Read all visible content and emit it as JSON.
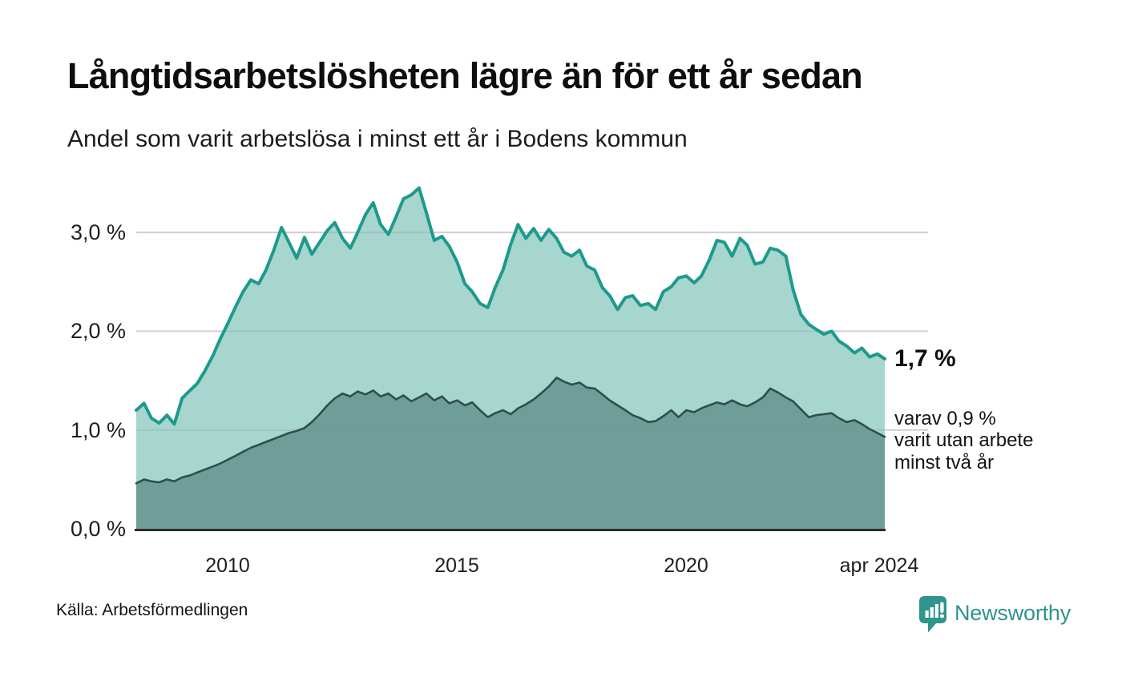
{
  "header": {
    "title": "Långtidsarbetslösheten lägre än för ett år sedan",
    "subtitle": "Andel som varit arbetslösa i minst ett år i Bodens kommun"
  },
  "annotations": {
    "value_label": "1,7 %",
    "detail_lines": [
      "varav 0,9 %",
      "varit utan arbete",
      "minst två år"
    ]
  },
  "footer": {
    "source": "Källa: Arbetsförmedlingen",
    "logo_text": "Newsworthy"
  },
  "colors": {
    "accent_line": "#1e9a8d",
    "area_light": "#a6d6ce",
    "area_dark": "#6f9e98",
    "dark_line": "#2e4f4b",
    "grid": "#e3e3e3",
    "grid_overlay": "#8a8a8a",
    "axis": "#2b2b2b",
    "logo": "#2f948b"
  },
  "chart_data": {
    "type": "area",
    "title": "Långtidsarbetslösheten lägre än för ett år sedan",
    "subtitle": "Andel som varit arbetslösa i minst ett år i Bodens kommun",
    "xlabel": "",
    "ylabel": "",
    "xlim": [
      2008.0,
      2024.33
    ],
    "ylim": [
      0,
      3.65
    ],
    "grid": "horizontal",
    "legend": "none",
    "y_ticks": [
      {
        "label": "0,0 %",
        "value": 0.0
      },
      {
        "label": "1,0 %",
        "value": 1.0
      },
      {
        "label": "2,0 %",
        "value": 2.0
      },
      {
        "label": "3,0 %",
        "value": 3.0
      }
    ],
    "x_ticks": [
      {
        "label": "2010",
        "year": 2010.0
      },
      {
        "label": "2015",
        "year": 2015.0
      },
      {
        "label": "2020",
        "year": 2020.0
      },
      {
        "label": "apr 2024",
        "year": 2024.2
      }
    ],
    "x": [
      2008.0,
      2008.17,
      2008.33,
      2008.5,
      2008.67,
      2008.83,
      2009.0,
      2009.17,
      2009.33,
      2009.5,
      2009.67,
      2009.83,
      2010.0,
      2010.17,
      2010.33,
      2010.5,
      2010.67,
      2010.83,
      2011.0,
      2011.17,
      2011.33,
      2011.5,
      2011.67,
      2011.83,
      2012.0,
      2012.17,
      2012.33,
      2012.5,
      2012.67,
      2012.83,
      2013.0,
      2013.17,
      2013.33,
      2013.5,
      2013.67,
      2013.83,
      2014.0,
      2014.17,
      2014.33,
      2014.5,
      2014.67,
      2014.83,
      2015.0,
      2015.17,
      2015.33,
      2015.5,
      2015.67,
      2015.83,
      2016.0,
      2016.17,
      2016.33,
      2016.5,
      2016.67,
      2016.83,
      2017.0,
      2017.17,
      2017.33,
      2017.5,
      2017.67,
      2017.83,
      2018.0,
      2018.17,
      2018.33,
      2018.5,
      2018.67,
      2018.83,
      2019.0,
      2019.17,
      2019.33,
      2019.5,
      2019.67,
      2019.83,
      2020.0,
      2020.17,
      2020.33,
      2020.5,
      2020.67,
      2020.83,
      2021.0,
      2021.17,
      2021.33,
      2021.5,
      2021.67,
      2021.83,
      2022.0,
      2022.17,
      2022.33,
      2022.5,
      2022.67,
      2022.83,
      2023.0,
      2023.17,
      2023.33,
      2023.5,
      2023.67,
      2023.83,
      2024.0,
      2024.17,
      2024.33
    ],
    "series": [
      {
        "name": "Arbetslösa minst ett år",
        "latest_value": 1.7,
        "values": [
          1.2,
          1.27,
          1.12,
          1.07,
          1.15,
          1.06,
          1.32,
          1.4,
          1.47,
          1.6,
          1.75,
          1.92,
          2.08,
          2.25,
          2.4,
          2.52,
          2.48,
          2.62,
          2.82,
          3.05,
          2.9,
          2.74,
          2.95,
          2.78,
          2.9,
          3.02,
          3.1,
          2.94,
          2.84,
          3.0,
          3.18,
          3.3,
          3.08,
          2.98,
          3.16,
          3.34,
          3.38,
          3.45,
          3.2,
          2.92,
          2.96,
          2.86,
          2.7,
          2.48,
          2.4,
          2.28,
          2.24,
          2.44,
          2.62,
          2.88,
          3.08,
          2.94,
          3.04,
          2.92,
          3.03,
          2.94,
          2.8,
          2.76,
          2.82,
          2.66,
          2.62,
          2.44,
          2.36,
          2.22,
          2.34,
          2.36,
          2.26,
          2.28,
          2.22,
          2.4,
          2.45,
          2.54,
          2.56,
          2.49,
          2.56,
          2.72,
          2.92,
          2.9,
          2.76,
          2.94,
          2.87,
          2.68,
          2.7,
          2.84,
          2.82,
          2.76,
          2.42,
          2.17,
          2.07,
          2.02,
          1.97,
          2.0,
          1.9,
          1.85,
          1.78,
          1.83,
          1.74,
          1.77,
          1.72
        ]
      },
      {
        "name": "varav utan arbete minst två år",
        "latest_value": 0.9,
        "values": [
          0.46,
          0.5,
          0.48,
          0.47,
          0.5,
          0.48,
          0.52,
          0.54,
          0.57,
          0.6,
          0.63,
          0.66,
          0.7,
          0.74,
          0.78,
          0.82,
          0.85,
          0.88,
          0.91,
          0.94,
          0.97,
          0.99,
          1.02,
          1.08,
          1.16,
          1.25,
          1.32,
          1.37,
          1.34,
          1.39,
          1.36,
          1.4,
          1.34,
          1.37,
          1.31,
          1.35,
          1.29,
          1.33,
          1.37,
          1.3,
          1.34,
          1.27,
          1.3,
          1.25,
          1.28,
          1.2,
          1.13,
          1.17,
          1.2,
          1.16,
          1.22,
          1.26,
          1.31,
          1.37,
          1.44,
          1.53,
          1.49,
          1.46,
          1.48,
          1.43,
          1.42,
          1.36,
          1.3,
          1.25,
          1.2,
          1.15,
          1.12,
          1.08,
          1.09,
          1.14,
          1.2,
          1.13,
          1.2,
          1.18,
          1.22,
          1.25,
          1.28,
          1.26,
          1.3,
          1.26,
          1.24,
          1.28,
          1.33,
          1.42,
          1.38,
          1.33,
          1.29,
          1.21,
          1.13,
          1.15,
          1.16,
          1.17,
          1.12,
          1.08,
          1.1,
          1.06,
          1.01,
          0.97,
          0.93
        ]
      }
    ]
  }
}
